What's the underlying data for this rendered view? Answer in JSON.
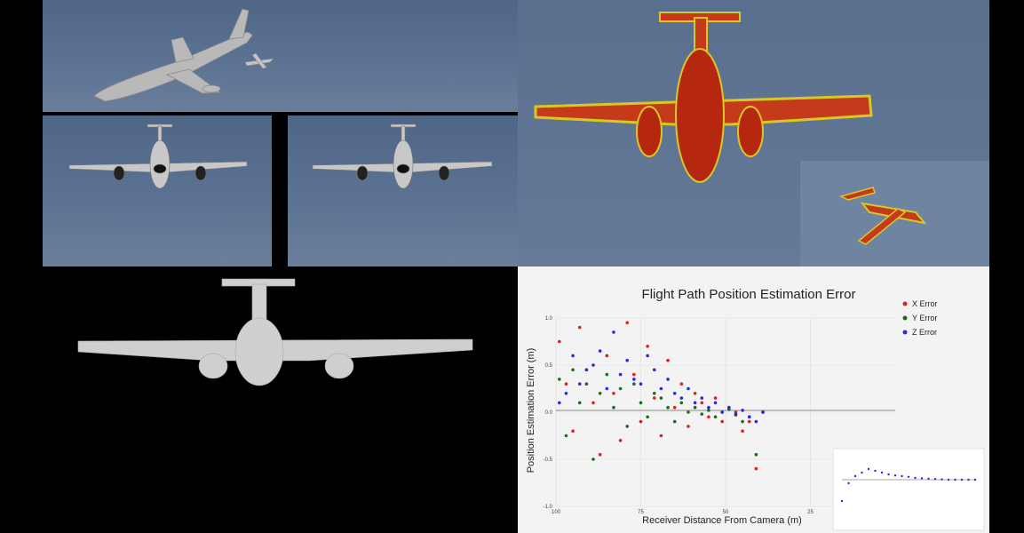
{
  "chart_data": {
    "type": "scatter",
    "title": "Flight Path Position Estimation Error",
    "xlabel": "Receiver Distance From Camera (m)",
    "ylabel": "Position Estimation Error (m)",
    "xlim": [
      100,
      0
    ],
    "ylim": [
      -1.0,
      1.0
    ],
    "xticks": [
      "100",
      "75",
      "50",
      "25"
    ],
    "yticks": [
      "1.0",
      "0.5",
      "0.0",
      "-0.5",
      "-1.0"
    ],
    "grid": true,
    "legend_position": "top-right",
    "series": [
      {
        "name": "X Error",
        "color": "#e02020",
        "x": [
          99,
          97,
          95,
          93,
          91,
          89,
          87,
          85,
          83,
          81,
          79,
          77,
          75,
          73,
          71,
          69,
          67,
          65,
          63,
          61,
          59,
          57,
          55,
          53,
          51,
          49,
          47,
          45,
          43,
          41,
          39
        ],
        "y": [
          0.75,
          0.3,
          -0.2,
          0.9,
          0.45,
          0.1,
          -0.45,
          0.6,
          0.2,
          -0.3,
          0.95,
          0.4,
          -0.1,
          0.7,
          0.15,
          -0.25,
          0.55,
          0.05,
          0.3,
          -0.15,
          0.2,
          0.1,
          -0.05,
          0.15,
          -0.1,
          0.05,
          0.0,
          -0.2,
          -0.1,
          -0.6,
          0.0
        ]
      },
      {
        "name": "Y Error",
        "color": "#1a6e1a",
        "x": [
          99,
          97,
          95,
          93,
          91,
          89,
          87,
          85,
          83,
          81,
          79,
          77,
          75,
          73,
          71,
          69,
          67,
          65,
          63,
          61,
          59,
          57,
          55,
          53,
          51,
          49,
          47,
          45,
          43,
          41,
          39
        ],
        "y": [
          0.35,
          -0.25,
          0.45,
          0.1,
          0.3,
          -0.5,
          0.2,
          0.4,
          0.05,
          0.25,
          -0.15,
          0.3,
          0.1,
          -0.05,
          0.2,
          0.15,
          0.05,
          -0.1,
          0.1,
          0.0,
          0.05,
          -0.02,
          0.02,
          -0.05,
          0.0,
          0.03,
          -0.03,
          -0.1,
          -0.05,
          -0.45,
          0.0
        ]
      },
      {
        "name": "Z Error",
        "color": "#2a2ae0",
        "x": [
          99,
          97,
          95,
          93,
          91,
          89,
          87,
          85,
          83,
          81,
          79,
          77,
          75,
          73,
          71,
          69,
          67,
          65,
          63,
          61,
          59,
          57,
          55,
          53,
          51,
          49,
          47,
          45,
          43,
          41,
          39
        ],
        "y": [
          0.1,
          0.2,
          0.6,
          0.3,
          0.45,
          0.5,
          0.65,
          0.25,
          0.85,
          0.4,
          0.55,
          0.35,
          0.3,
          0.6,
          0.45,
          0.25,
          0.35,
          0.2,
          0.15,
          0.25,
          0.1,
          0.15,
          0.05,
          0.1,
          0.0,
          0.05,
          -0.02,
          0.02,
          -0.05,
          -0.1,
          0.0
        ]
      }
    ]
  },
  "inset_chart": {
    "type": "scatter",
    "x": [
      0,
      5,
      10,
      15,
      20,
      25,
      30,
      35,
      40,
      45,
      50,
      55,
      60,
      65,
      70,
      75,
      80,
      85,
      90,
      95,
      100
    ],
    "y": [
      -0.6,
      -0.1,
      0.1,
      0.2,
      0.3,
      0.25,
      0.2,
      0.15,
      0.12,
      0.1,
      0.08,
      0.05,
      0.04,
      0.03,
      0.02,
      0.01,
      0.0,
      0.0,
      0.0,
      0.0,
      0.0
    ]
  }
}
